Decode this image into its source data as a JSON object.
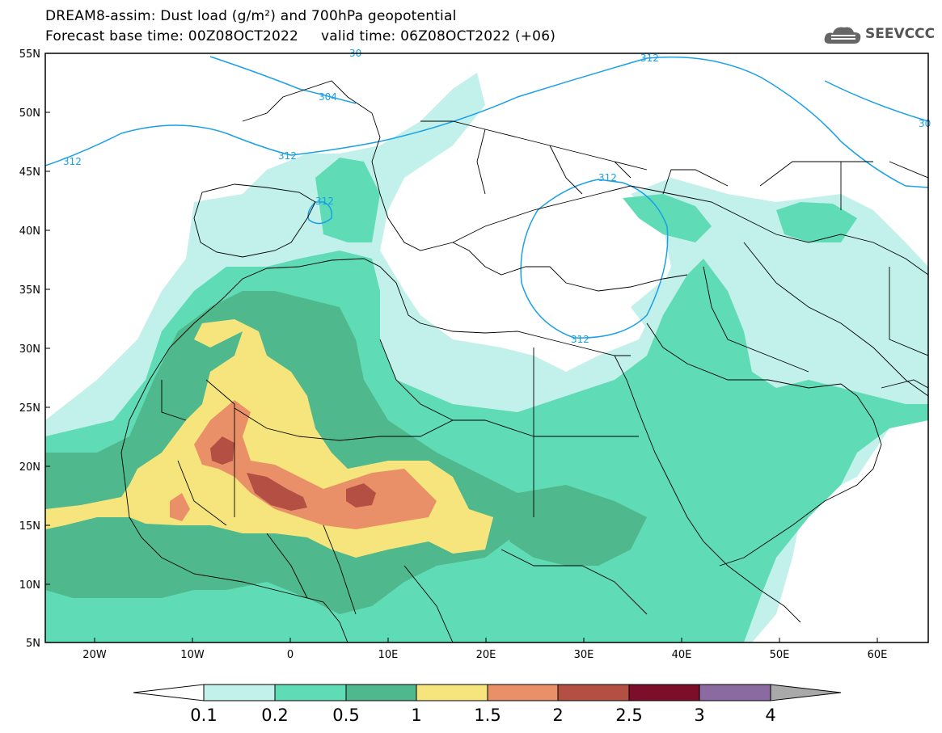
{
  "header": {
    "title_line1": "DREAM8-assim: Dust load (g/m²) and 700hPa geopotential",
    "title_line2": "Forecast base time: 00Z08OCT2022     valid time: 06Z08OCT2022 (+06)",
    "logo_text": "SEEVCCC"
  },
  "map": {
    "lat_labels": [
      "55N",
      "50N",
      "45N",
      "40N",
      "35N",
      "30N",
      "25N",
      "20N",
      "15N",
      "10N",
      "5N"
    ],
    "lon_labels": [
      "20W",
      "10W",
      "0",
      "10E",
      "20E",
      "30E",
      "40E",
      "50E",
      "60E"
    ],
    "contour_labels": [
      "312",
      "312",
      "312",
      "312",
      "312",
      "312",
      "304",
      "30",
      "30"
    ],
    "contour_color": "#1aa0e8"
  },
  "colorbar": {
    "labels": [
      "0.1",
      "0.2",
      "0.5",
      "1",
      "1.5",
      "2",
      "2.5",
      "3",
      "4"
    ],
    "colors": [
      "#c2f0ea",
      "#5fdcb6",
      "#4fb88c",
      "#f5e57c",
      "#ea9068",
      "#b44f43",
      "#7d0e2a",
      "#8a6aa0",
      "#a9a9a9"
    ]
  }
}
